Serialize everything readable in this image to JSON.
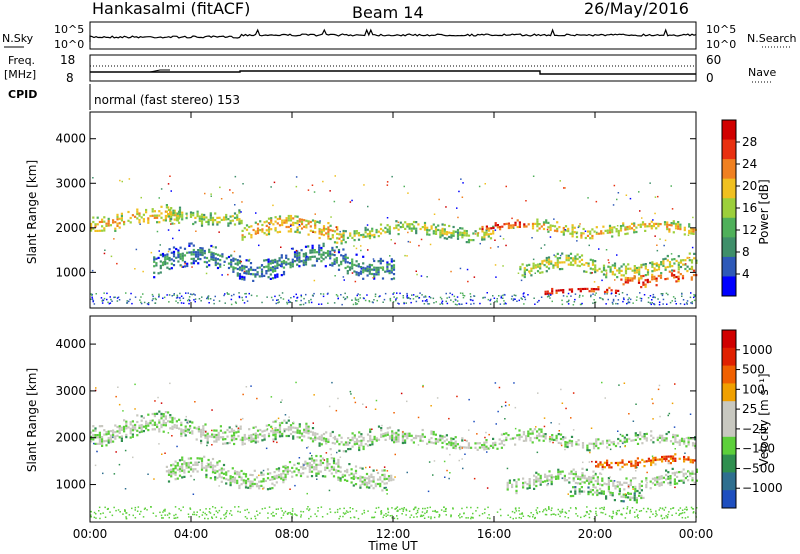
{
  "header": {
    "station": "Hankasalmi (fitACF)",
    "beam": "Beam 14",
    "date": "26/May/2016"
  },
  "panels": {
    "nsky": {
      "left_label": "N.Sky",
      "left_ticks": [
        "10^5",
        "10^0"
      ],
      "right_ticks": [
        "10^5",
        "10^0"
      ],
      "right_label": "N.Search"
    },
    "freq": {
      "left_label_top": "Freq.",
      "left_label_bottom": "[MHz]",
      "left_ticks": [
        "18",
        "8"
      ],
      "right_ticks": [
        "60",
        "0"
      ],
      "right_label": "Nave"
    },
    "cpid": {
      "left_label": "CPID",
      "mode_text": "normal (fast stereo) 153"
    }
  },
  "colors": {
    "power_scale": [
      "#0000ff",
      "#2e59b8",
      "#3f8f6a",
      "#4fb05a",
      "#9ccf3b",
      "#f0c020",
      "#f08020",
      "#e83010",
      "#d00000"
    ],
    "velocity_scale": [
      "#1f4fbf",
      "#2f6f8f",
      "#2f8f4f",
      "#5ccf3a",
      "#c8c8c0",
      "#c8c8c0",
      "#f0a000",
      "#f06000",
      "#e02000",
      "#d00000"
    ]
  },
  "chart_data": [
    {
      "type": "heatmap",
      "name": "power",
      "ylabel": "Slant Range [km]",
      "yticks": [
        1000,
        2000,
        3000,
        4000
      ],
      "ylim": [
        200,
        4600
      ],
      "xlim": [
        0,
        24
      ],
      "colorbar_label": "Power [dB]",
      "colorbar_ticks": [
        "28",
        "24",
        "20",
        "16",
        "12",
        "8",
        "4"
      ],
      "bands": [
        {
          "start": 0.0,
          "end": 3.5,
          "center": 2200,
          "width": 350,
          "level": 5
        },
        {
          "start": 3.0,
          "end": 6.0,
          "center": 2300,
          "width": 300,
          "level": 4
        },
        {
          "start": 6.0,
          "end": 10.0,
          "center": 2000,
          "width": 400,
          "level": 5
        },
        {
          "start": 10.0,
          "end": 16.0,
          "center": 1950,
          "width": 300,
          "level": 4
        },
        {
          "start": 15.5,
          "end": 17.5,
          "center": 2050,
          "width": 180,
          "level": 7
        },
        {
          "start": 17.5,
          "end": 24.0,
          "center": 2000,
          "width": 250,
          "level": 5
        },
        {
          "start": 2.5,
          "end": 12.0,
          "center": 1250,
          "width": 500,
          "level": 2
        },
        {
          "start": 17.0,
          "end": 24.0,
          "center": 1150,
          "width": 350,
          "level": 4
        },
        {
          "start": 18.0,
          "end": 21.0,
          "center": 600,
          "width": 120,
          "level": 8
        },
        {
          "start": 21.0,
          "end": 24.0,
          "center": 900,
          "width": 250,
          "level": 7
        }
      ]
    },
    {
      "type": "heatmap",
      "name": "velocity",
      "ylabel": "Slant Range [km]",
      "xlabel": "Time UT",
      "xticks": [
        "00:00",
        "04:00",
        "08:00",
        "12:00",
        "16:00",
        "20:00",
        "00:00"
      ],
      "yticks": [
        1000,
        2000,
        3000,
        4000
      ],
      "ylim": [
        200,
        4600
      ],
      "xlim": [
        0,
        24
      ],
      "colorbar_label": "Velocity [m s⁻¹]",
      "colorbar_ticks": [
        "1000",
        "500",
        "100",
        "25",
        "−25",
        "−100",
        "−500",
        "−1000"
      ],
      "bands": [
        {
          "start": 0.0,
          "end": 6.0,
          "center": 2200,
          "width": 450,
          "level": 4
        },
        {
          "start": 6.0,
          "end": 12.0,
          "center": 2050,
          "width": 400,
          "level": 4
        },
        {
          "start": 12.0,
          "end": 18.0,
          "center": 1950,
          "width": 300,
          "level": 4
        },
        {
          "start": 18.0,
          "end": 24.0,
          "center": 1950,
          "width": 250,
          "level": 4
        },
        {
          "start": 3.0,
          "end": 12.0,
          "center": 1250,
          "width": 450,
          "level": 4
        },
        {
          "start": 16.5,
          "end": 24.0,
          "center": 1100,
          "width": 350,
          "level": 4
        },
        {
          "start": 20.0,
          "end": 24.0,
          "center": 1500,
          "width": 200,
          "level": 7
        },
        {
          "start": 19.0,
          "end": 22.0,
          "center": 800,
          "width": 200,
          "level": 3
        }
      ]
    }
  ]
}
